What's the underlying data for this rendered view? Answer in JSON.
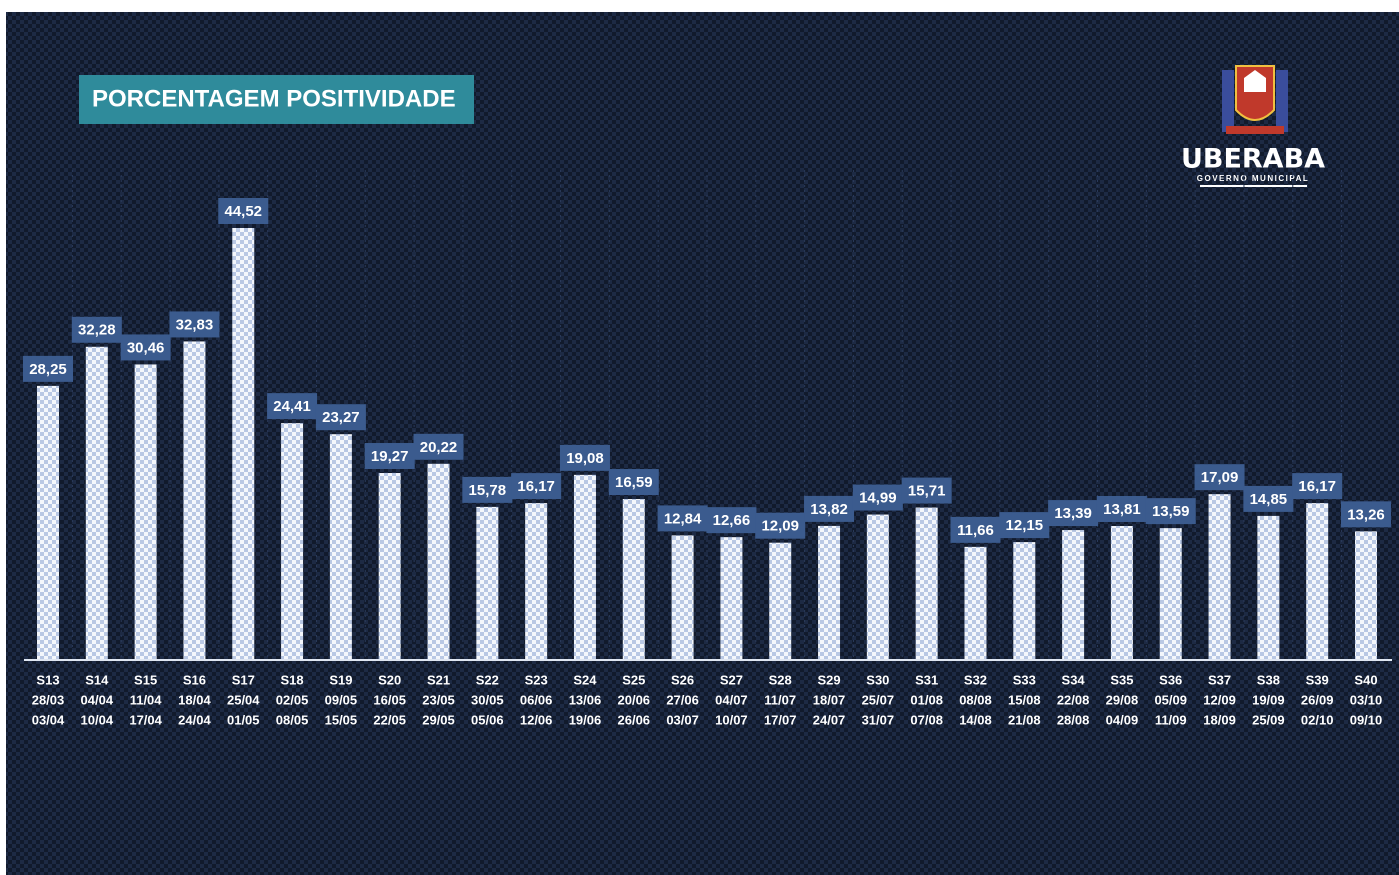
{
  "chart_data": {
    "type": "bar",
    "title": "PORCENTAGEM POSITIVIDADE",
    "logo": {
      "name": "UBERABA",
      "subtitle": "GOVERNO MUNICIPAL"
    },
    "color": "#e8eef8",
    "categories": [
      [
        "S13",
        "28/03",
        "03/04"
      ],
      [
        "S14",
        "04/04",
        "10/04"
      ],
      [
        "S15",
        "11/04",
        "17/04"
      ],
      [
        "S16",
        "18/04",
        "24/04"
      ],
      [
        "S17",
        "25/04",
        "01/05"
      ],
      [
        "S18",
        "02/05",
        "08/05"
      ],
      [
        "S19",
        "09/05",
        "15/05"
      ],
      [
        "S20",
        "16/05",
        "22/05"
      ],
      [
        "S21",
        "23/05",
        "29/05"
      ],
      [
        "S22",
        "30/05",
        "05/06"
      ],
      [
        "S23",
        "06/06",
        "12/06"
      ],
      [
        "S24",
        "13/06",
        "19/06"
      ],
      [
        "S25",
        "20/06",
        "26/06"
      ],
      [
        "S26",
        "27/06",
        "03/07"
      ],
      [
        "S27",
        "04/07",
        "10/07"
      ],
      [
        "S28",
        "11/07",
        "17/07"
      ],
      [
        "S29",
        "18/07",
        "24/07"
      ],
      [
        "S30",
        "25/07",
        "31/07"
      ],
      [
        "S31",
        "01/08",
        "07/08"
      ],
      [
        "S32",
        "08/08",
        "14/08"
      ],
      [
        "S33",
        "15/08",
        "21/08"
      ],
      [
        "S34",
        "22/08",
        "28/08"
      ],
      [
        "S35",
        "29/08",
        "04/09"
      ],
      [
        "S36",
        "05/09",
        "11/09"
      ],
      [
        "S37",
        "12/09",
        "18/09"
      ],
      [
        "S38",
        "19/09",
        "25/09"
      ],
      [
        "S39",
        "26/09",
        "02/10"
      ],
      [
        "S40",
        "03/10",
        "09/10"
      ]
    ],
    "values": [
      28.25,
      32.28,
      30.46,
      32.83,
      44.52,
      24.41,
      23.27,
      19.27,
      20.22,
      15.78,
      16.17,
      19.08,
      16.59,
      12.84,
      12.66,
      12.09,
      13.82,
      14.99,
      15.71,
      11.66,
      12.15,
      13.39,
      13.81,
      13.59,
      17.09,
      14.85,
      16.17,
      13.26
    ],
    "value_labels": [
      "28,25",
      "32,28",
      "30,46",
      "32,83",
      "44,52",
      "24,41",
      "23,27",
      "19,27",
      "20,22",
      "15,78",
      "16,17",
      "19,08",
      "16,59",
      "12,84",
      "12,66",
      "12,09",
      "13,82",
      "14,99",
      "15,71",
      "11,66",
      "12,15",
      "13,39",
      "13,81",
      "13,59",
      "17,09",
      "14,85",
      "16,17",
      "13,26"
    ]
  }
}
